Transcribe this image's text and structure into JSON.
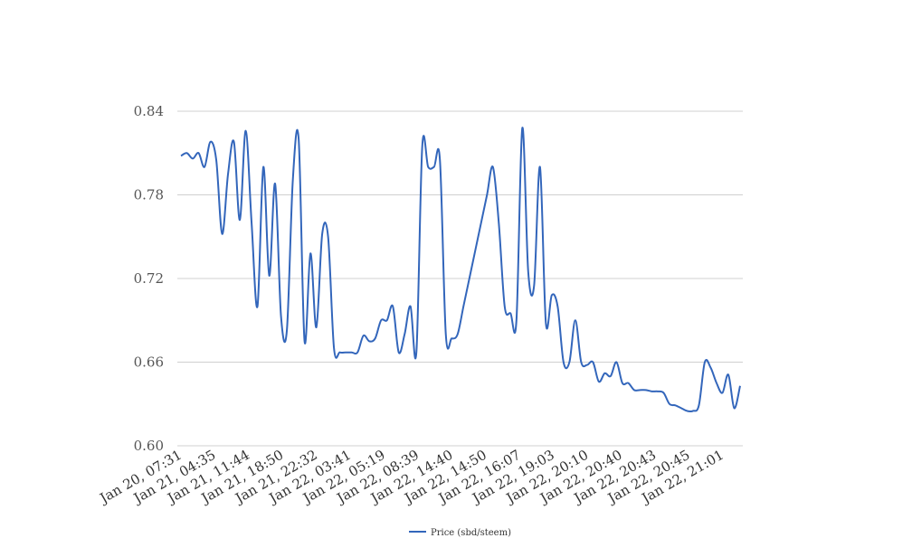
{
  "chart_data": {
    "type": "line",
    "ylim": [
      0.6,
      0.84
    ],
    "yticks": [
      "0.60",
      "0.66",
      "0.72",
      "0.78",
      "0.84"
    ],
    "grid": true,
    "legend_placement": "bottom-center",
    "x_tick_labels": [
      "Jan 20, 07:31",
      "Jan 21, 04:35",
      "Jan 21, 11:44",
      "Jan 21, 18:50",
      "Jan 21, 22:32",
      "Jan 22, 03:41",
      "Jan 22, 05:19",
      "Jan 22, 08:39",
      "Jan 22, 14:40",
      "Jan 22, 14:50",
      "Jan 22, 16:07",
      "Jan 22, 19:03",
      "Jan 22, 20:10",
      "Jan 22, 20:40",
      "Jan 22, 20:43",
      "Jan 22, 20:45",
      "Jan 22, 21:01"
    ],
    "series": [
      {
        "name": "Price (sbd/steem)",
        "color": "#3366bb",
        "values": [
          0.808,
          0.81,
          0.806,
          0.81,
          0.8,
          0.818,
          0.805,
          0.752,
          0.795,
          0.818,
          0.762,
          0.826,
          0.76,
          0.7,
          0.8,
          0.722,
          0.788,
          0.693,
          0.683,
          0.79,
          0.82,
          0.675,
          0.738,
          0.685,
          0.752,
          0.75,
          0.67,
          0.667,
          0.667,
          0.667,
          0.667,
          0.679,
          0.675,
          0.677,
          0.69,
          0.69,
          0.7,
          0.667,
          0.68,
          0.7,
          0.667,
          0.815,
          0.8,
          0.8,
          0.805,
          0.68,
          0.677,
          0.68,
          0.7,
          0.72,
          0.74,
          0.76,
          0.78,
          0.8,
          0.76,
          0.7,
          0.695,
          0.69,
          0.828,
          0.725,
          0.715,
          0.8,
          0.688,
          0.708,
          0.7,
          0.66,
          0.66,
          0.69,
          0.66,
          0.658,
          0.66,
          0.646,
          0.652,
          0.65,
          0.66,
          0.645,
          0.645,
          0.64,
          0.64,
          0.64,
          0.639,
          0.639,
          0.638,
          0.63,
          0.629,
          0.627,
          0.625,
          0.625,
          0.629,
          0.66,
          0.656,
          0.645,
          0.638,
          0.651,
          0.627,
          0.643
        ]
      }
    ]
  }
}
